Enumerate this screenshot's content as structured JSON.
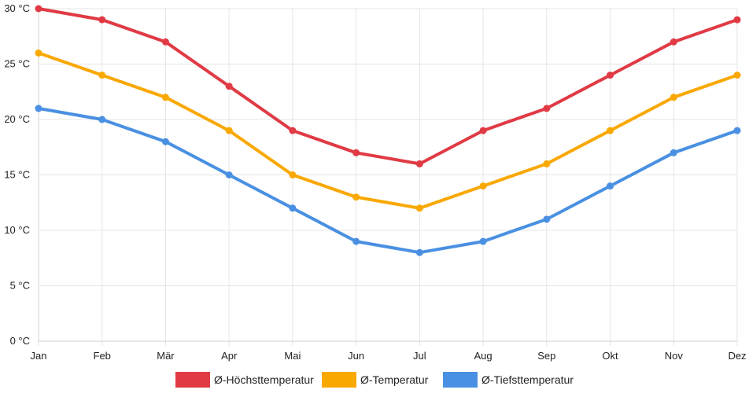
{
  "chart_data": {
    "type": "line",
    "title": "",
    "xlabel": "",
    "ylabel": "",
    "categories": [
      "Jan",
      "Feb",
      "Mär",
      "Apr",
      "Mai",
      "Jun",
      "Jul",
      "Aug",
      "Sep",
      "Okt",
      "Nov",
      "Dez"
    ],
    "ylim": [
      0,
      30
    ],
    "yticks": [
      0,
      5,
      10,
      15,
      20,
      25,
      30
    ],
    "ytick_labels": [
      "0 °C",
      "5 °C",
      "10 °C",
      "15 °C",
      "20 °C",
      "25 °C",
      "30 °C"
    ],
    "grid": true,
    "legend_position": "bottom",
    "series": [
      {
        "name": "Ø-Höchsttemperatur",
        "color": "#e03a45",
        "values": [
          30,
          29,
          27,
          23,
          19,
          17,
          16,
          19,
          21,
          24,
          27,
          29
        ]
      },
      {
        "name": "Ø-Temperatur",
        "color": "#f9a800",
        "values": [
          26,
          24,
          22,
          19,
          15,
          13,
          12,
          14,
          16,
          19,
          22,
          24
        ]
      },
      {
        "name": "Ø-Tiefsttemperatur",
        "color": "#4a90e2",
        "values": [
          21,
          20,
          18,
          15,
          12,
          9,
          8,
          9,
          11,
          14,
          17,
          19
        ]
      }
    ]
  }
}
